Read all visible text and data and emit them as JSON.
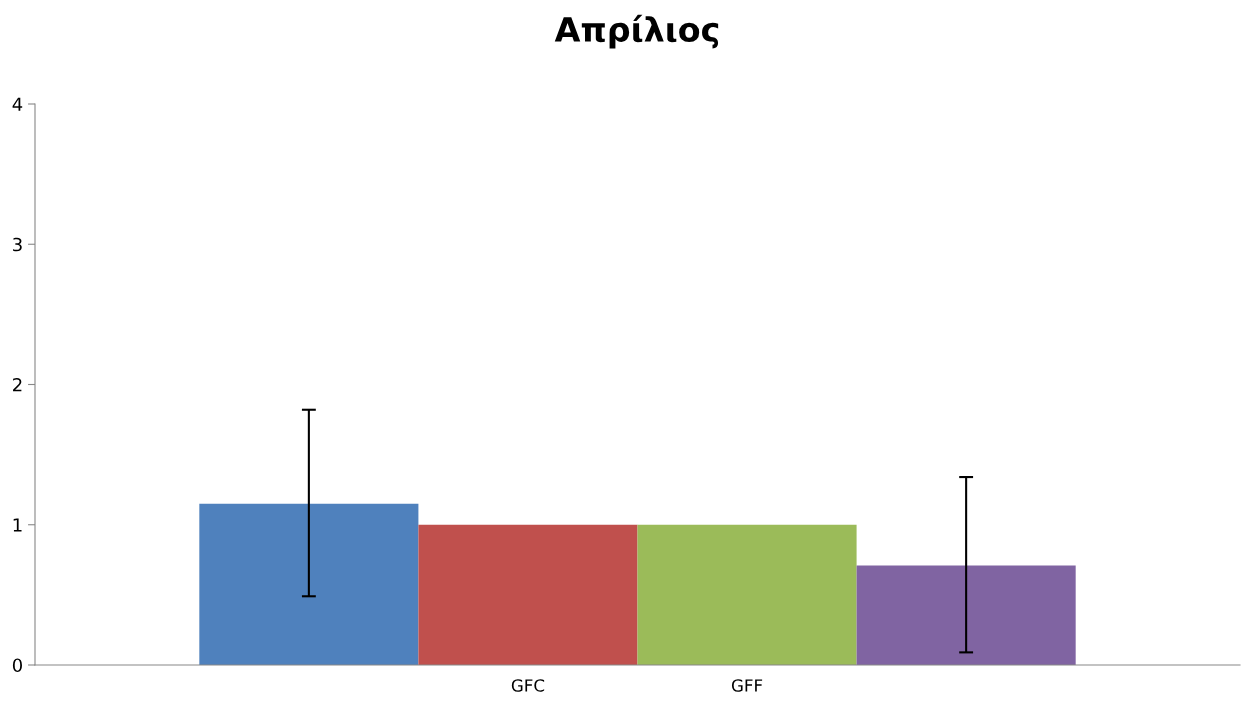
{
  "chart_data": {
    "type": "bar",
    "title": "Απρίλιος",
    "categories": [
      null,
      "GFC",
      "GFF",
      null
    ],
    "values": [
      1.15,
      1.0,
      1.0,
      0.71
    ],
    "colors": [
      "#4f81bd",
      "#c0504d",
      "#9bbb59",
      "#8064a2"
    ],
    "errors": [
      [
        0.49,
        1.82
      ],
      null,
      null,
      [
        0.09,
        1.34
      ]
    ],
    "ylim": [
      0,
      4
    ],
    "yticks": [
      0,
      1,
      2,
      3,
      4
    ]
  }
}
